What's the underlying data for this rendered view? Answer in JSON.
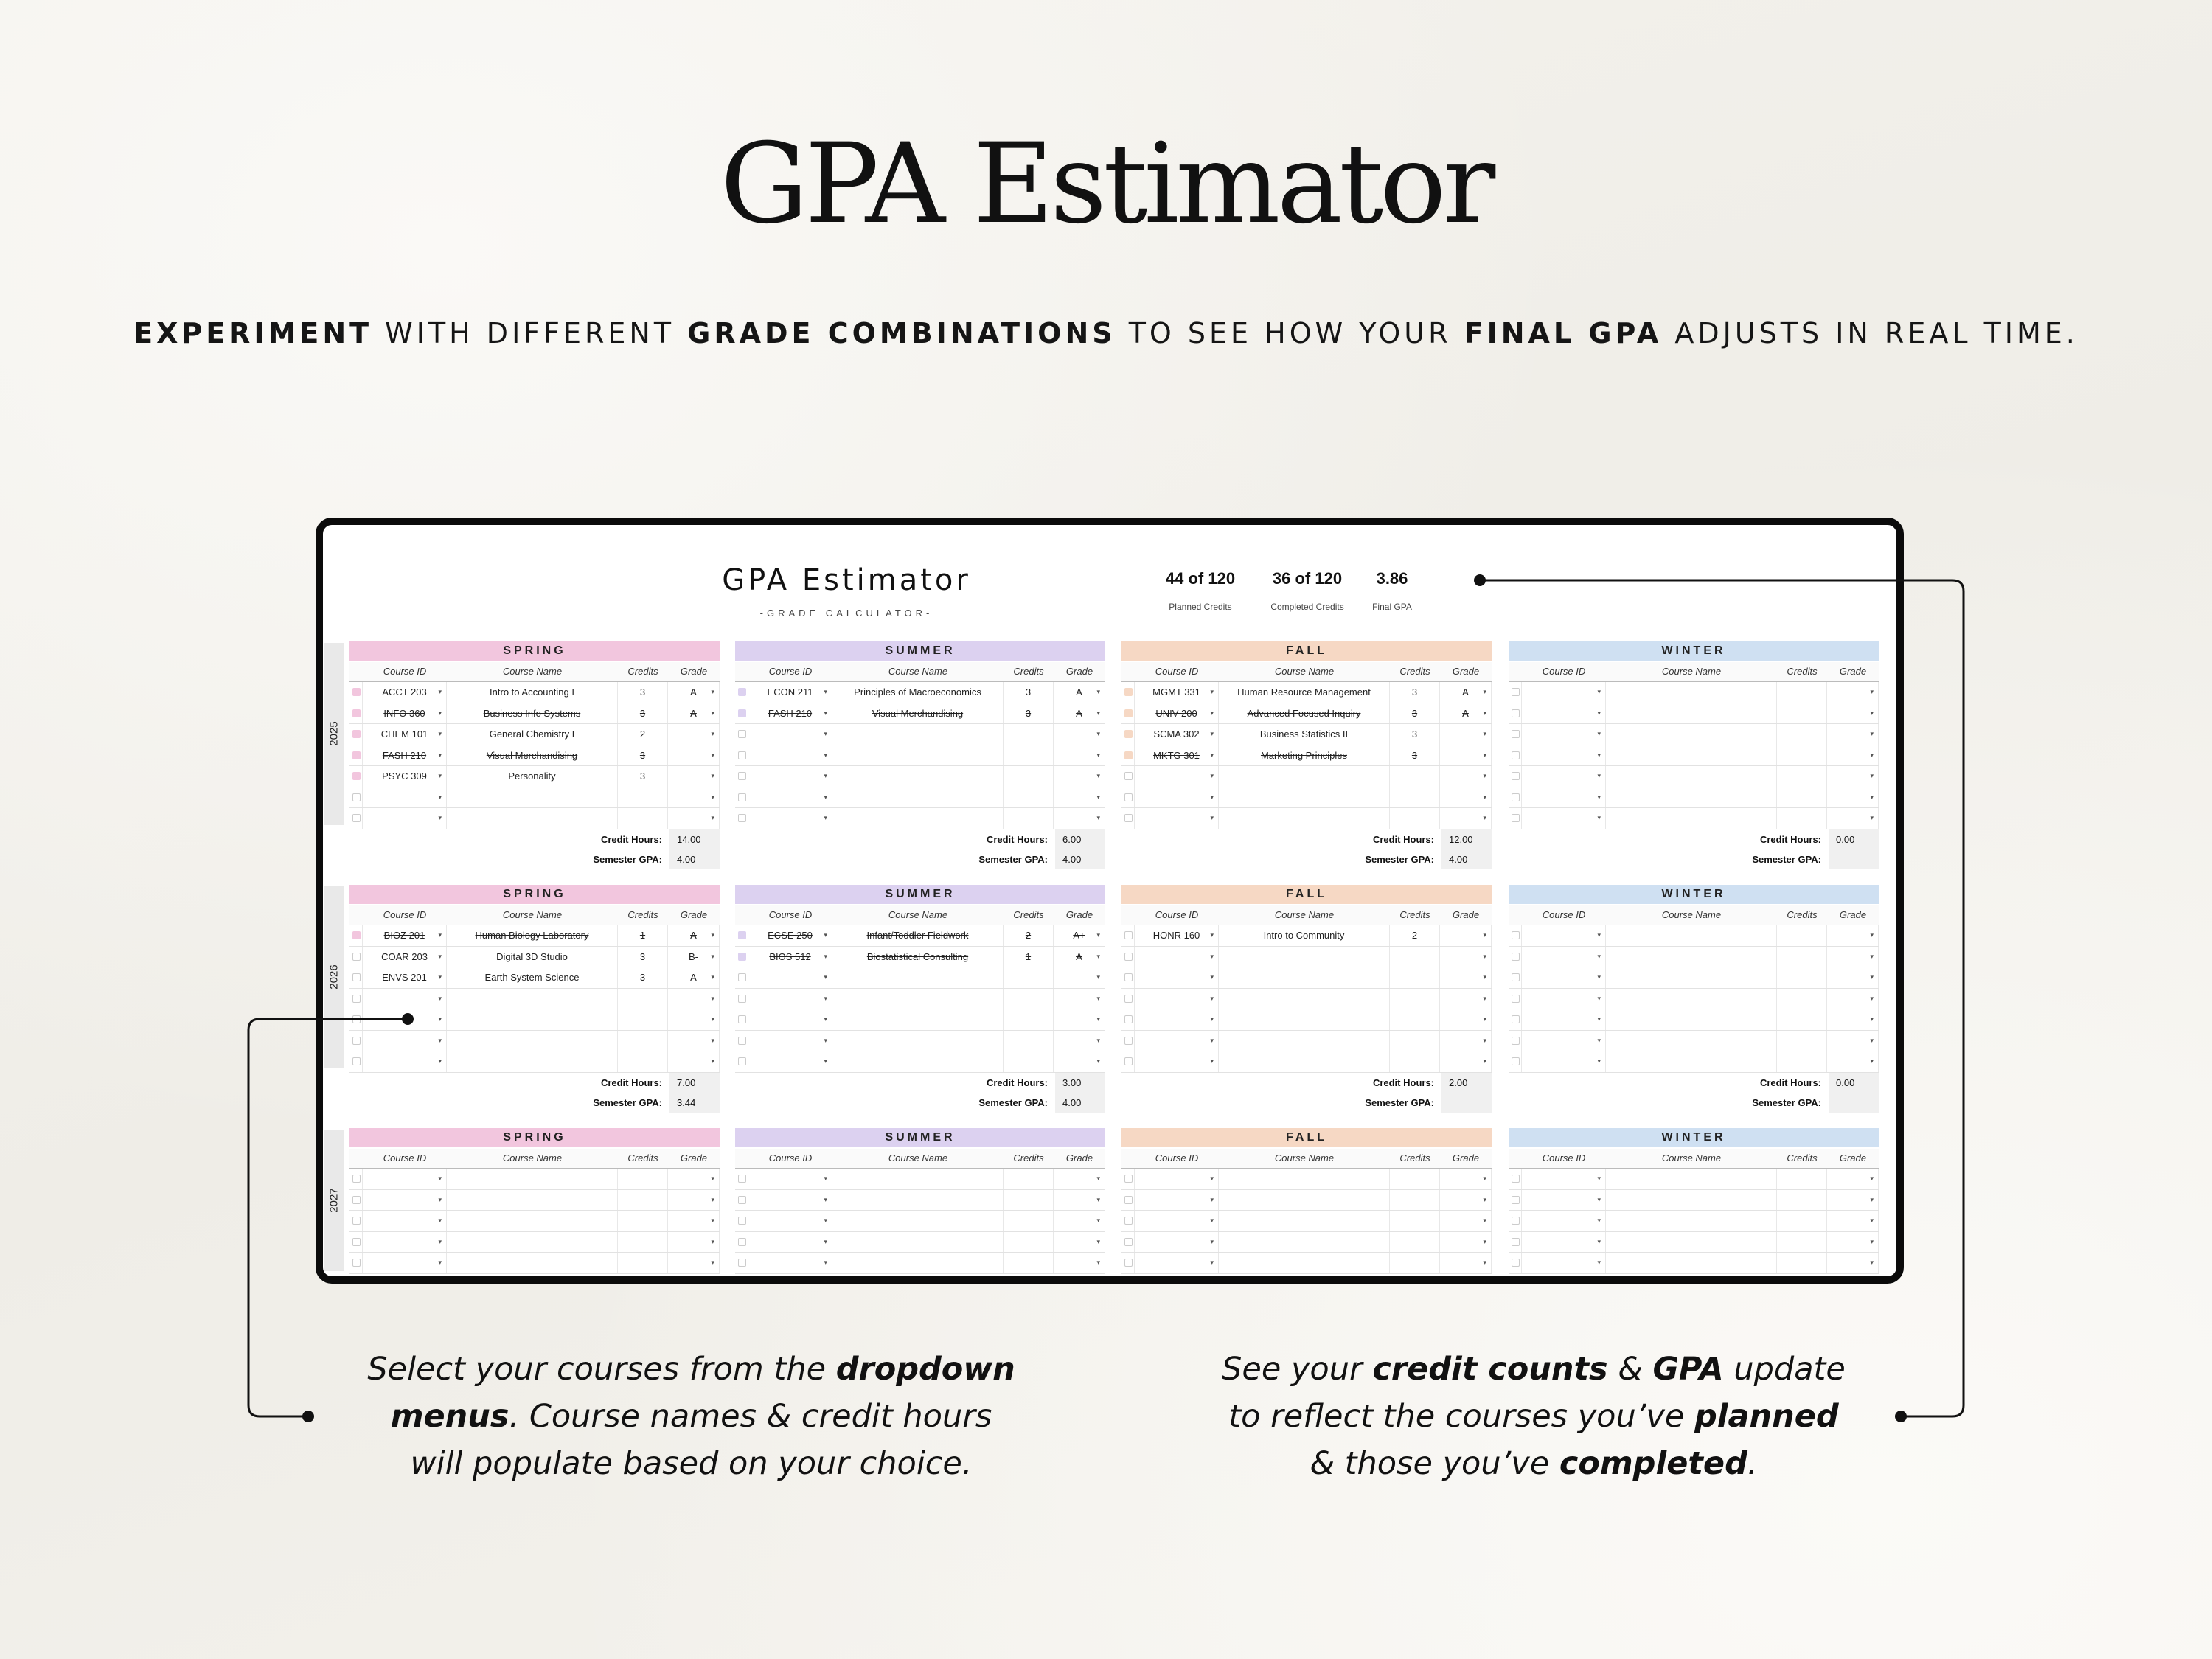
{
  "hero": {
    "title": "GPA Estimator",
    "subtitle": [
      {
        "text": "EXPERIMENT",
        "bold": true
      },
      {
        "text": " WITH DIFFERENT ",
        "bold": false
      },
      {
        "text": "GRADE COMBINATIONS",
        "bold": true
      },
      {
        "text": " TO SEE HOW YOUR ",
        "bold": false
      },
      {
        "text": "FINAL GPA",
        "bold": true
      },
      {
        "text": " ADJUSTS IN REAL TIME.",
        "bold": false
      }
    ]
  },
  "sheet": {
    "title": "GPA Estimator",
    "subtitle": "-GRADE CALCULATOR-",
    "stats": [
      {
        "value": "44 of 120",
        "label": "Planned Credits"
      },
      {
        "value": "36 of 120",
        "label": "Completed Credits"
      },
      {
        "value": "3.86",
        "label": "Final GPA"
      }
    ],
    "columns": [
      "Course ID",
      "Course Name",
      "Credits",
      "Grade"
    ],
    "summary_labels": {
      "credit_hours": "Credit Hours:",
      "semester_gpa": "Semester GPA:"
    },
    "colors": {
      "SPRING": "#f2c6de",
      "SUMMER": "#dcd1f0",
      "FALL": "#f6d8c4",
      "WINTER": "#cfe0f2"
    },
    "years": [
      {
        "year": "2025",
        "semesters": [
          {
            "name": "SPRING",
            "credit_hours": "14.00",
            "semester_gpa": "4.00",
            "rows": [
              {
                "done": true,
                "id": "ACCT 203",
                "name": "Intro to Accounting I",
                "credits": "3",
                "grade": "A"
              },
              {
                "done": true,
                "id": "INFO 360",
                "name": "Business Info Systems",
                "credits": "3",
                "grade": "A"
              },
              {
                "done": true,
                "id": "CHEM 101",
                "name": "General Chemistry I",
                "credits": "2",
                "grade": ""
              },
              {
                "done": true,
                "id": "FASH 210",
                "name": "Visual Merchandising",
                "credits": "3",
                "grade": ""
              },
              {
                "done": true,
                "id": "PSYC 309",
                "name": "Personality",
                "credits": "3",
                "grade": ""
              },
              {
                "done": false,
                "id": "",
                "name": "",
                "credits": "",
                "grade": ""
              },
              {
                "done": false,
                "id": "",
                "name": "",
                "credits": "",
                "grade": ""
              }
            ]
          },
          {
            "name": "SUMMER",
            "credit_hours": "6.00",
            "semester_gpa": "4.00",
            "rows": [
              {
                "done": true,
                "id": "ECON 211",
                "name": "Principles of Macroeconomics",
                "credits": "3",
                "grade": "A"
              },
              {
                "done": true,
                "id": "FASH 210",
                "name": "Visual Merchandising",
                "credits": "3",
                "grade": "A"
              },
              {
                "done": false,
                "id": "",
                "name": "",
                "credits": "",
                "grade": ""
              },
              {
                "done": false,
                "id": "",
                "name": "",
                "credits": "",
                "grade": ""
              },
              {
                "done": false,
                "id": "",
                "name": "",
                "credits": "",
                "grade": ""
              },
              {
                "done": false,
                "id": "",
                "name": "",
                "credits": "",
                "grade": ""
              },
              {
                "done": false,
                "id": "",
                "name": "",
                "credits": "",
                "grade": ""
              }
            ]
          },
          {
            "name": "FALL",
            "credit_hours": "12.00",
            "semester_gpa": "4.00",
            "rows": [
              {
                "done": true,
                "id": "MGMT 331",
                "name": "Human Resource Management",
                "credits": "3",
                "grade": "A"
              },
              {
                "done": true,
                "id": "UNIV 200",
                "name": "Advanced Focused Inquiry",
                "credits": "3",
                "grade": "A"
              },
              {
                "done": true,
                "id": "SCMA 302",
                "name": "Business Statistics II",
                "credits": "3",
                "grade": ""
              },
              {
                "done": true,
                "id": "MKTG 301",
                "name": "Marketing Principles",
                "credits": "3",
                "grade": ""
              },
              {
                "done": false,
                "id": "",
                "name": "",
                "credits": "",
                "grade": ""
              },
              {
                "done": false,
                "id": "",
                "name": "",
                "credits": "",
                "grade": ""
              },
              {
                "done": false,
                "id": "",
                "name": "",
                "credits": "",
                "grade": ""
              }
            ]
          },
          {
            "name": "WINTER",
            "credit_hours": "0.00",
            "semester_gpa": "",
            "rows": [
              {
                "done": false,
                "id": "",
                "name": "",
                "credits": "",
                "grade": ""
              },
              {
                "done": false,
                "id": "",
                "name": "",
                "credits": "",
                "grade": ""
              },
              {
                "done": false,
                "id": "",
                "name": "",
                "credits": "",
                "grade": ""
              },
              {
                "done": false,
                "id": "",
                "name": "",
                "credits": "",
                "grade": ""
              },
              {
                "done": false,
                "id": "",
                "name": "",
                "credits": "",
                "grade": ""
              },
              {
                "done": false,
                "id": "",
                "name": "",
                "credits": "",
                "grade": ""
              },
              {
                "done": false,
                "id": "",
                "name": "",
                "credits": "",
                "grade": ""
              }
            ]
          }
        ]
      },
      {
        "year": "2026",
        "semesters": [
          {
            "name": "SPRING",
            "credit_hours": "7.00",
            "semester_gpa": "3.44",
            "rows": [
              {
                "done": true,
                "id": "BIOZ 201",
                "name": "Human Biology Laboratory",
                "credits": "1",
                "grade": "A"
              },
              {
                "done": false,
                "id": "COAR 203",
                "name": "Digital 3D Studio",
                "credits": "3",
                "grade": "B-"
              },
              {
                "done": false,
                "id": "ENVS 201",
                "name": "Earth System Science",
                "credits": "3",
                "grade": "A"
              },
              {
                "done": false,
                "id": "",
                "name": "",
                "credits": "",
                "grade": ""
              },
              {
                "done": false,
                "id": "",
                "name": "",
                "credits": "",
                "grade": ""
              },
              {
                "done": false,
                "id": "",
                "name": "",
                "credits": "",
                "grade": ""
              },
              {
                "done": false,
                "id": "",
                "name": "",
                "credits": "",
                "grade": ""
              }
            ]
          },
          {
            "name": "SUMMER",
            "credit_hours": "3.00",
            "semester_gpa": "4.00",
            "rows": [
              {
                "done": true,
                "id": "ECSE 250",
                "name": "Infant/Toddler Fieldwork",
                "credits": "2",
                "grade": "A+"
              },
              {
                "done": true,
                "id": "BIOS 512",
                "name": "Biostatistical Consulting",
                "credits": "1",
                "grade": "A"
              },
              {
                "done": false,
                "id": "",
                "name": "",
                "credits": "",
                "grade": ""
              },
              {
                "done": false,
                "id": "",
                "name": "",
                "credits": "",
                "grade": ""
              },
              {
                "done": false,
                "id": "",
                "name": "",
                "credits": "",
                "grade": ""
              },
              {
                "done": false,
                "id": "",
                "name": "",
                "credits": "",
                "grade": ""
              },
              {
                "done": false,
                "id": "",
                "name": "",
                "credits": "",
                "grade": ""
              }
            ]
          },
          {
            "name": "FALL",
            "credit_hours": "2.00",
            "semester_gpa": "",
            "rows": [
              {
                "done": false,
                "id": "HONR 160",
                "name": "Intro to Community",
                "credits": "2",
                "grade": ""
              },
              {
                "done": false,
                "id": "",
                "name": "",
                "credits": "",
                "grade": ""
              },
              {
                "done": false,
                "id": "",
                "name": "",
                "credits": "",
                "grade": ""
              },
              {
                "done": false,
                "id": "",
                "name": "",
                "credits": "",
                "grade": ""
              },
              {
                "done": false,
                "id": "",
                "name": "",
                "credits": "",
                "grade": ""
              },
              {
                "done": false,
                "id": "",
                "name": "",
                "credits": "",
                "grade": ""
              },
              {
                "done": false,
                "id": "",
                "name": "",
                "credits": "",
                "grade": ""
              }
            ]
          },
          {
            "name": "WINTER",
            "credit_hours": "0.00",
            "semester_gpa": "",
            "rows": [
              {
                "done": false,
                "id": "",
                "name": "",
                "credits": "",
                "grade": ""
              },
              {
                "done": false,
                "id": "",
                "name": "",
                "credits": "",
                "grade": ""
              },
              {
                "done": false,
                "id": "",
                "name": "",
                "credits": "",
                "grade": ""
              },
              {
                "done": false,
                "id": "",
                "name": "",
                "credits": "",
                "grade": ""
              },
              {
                "done": false,
                "id": "",
                "name": "",
                "credits": "",
                "grade": ""
              },
              {
                "done": false,
                "id": "",
                "name": "",
                "credits": "",
                "grade": ""
              },
              {
                "done": false,
                "id": "",
                "name": "",
                "credits": "",
                "grade": ""
              }
            ]
          }
        ]
      },
      {
        "year": "2027",
        "semesters": [
          {
            "name": "SPRING",
            "rows": [
              {
                "done": false,
                "id": "",
                "name": "",
                "credits": "",
                "grade": ""
              },
              {
                "done": false,
                "id": "",
                "name": "",
                "credits": "",
                "grade": ""
              },
              {
                "done": false,
                "id": "",
                "name": "",
                "credits": "",
                "grade": ""
              },
              {
                "done": false,
                "id": "",
                "name": "",
                "credits": "",
                "grade": ""
              },
              {
                "done": false,
                "id": "",
                "name": "",
                "credits": "",
                "grade": ""
              }
            ]
          },
          {
            "name": "SUMMER",
            "rows": [
              {
                "done": false,
                "id": "",
                "name": "",
                "credits": "",
                "grade": ""
              },
              {
                "done": false,
                "id": "",
                "name": "",
                "credits": "",
                "grade": ""
              },
              {
                "done": false,
                "id": "",
                "name": "",
                "credits": "",
                "grade": ""
              },
              {
                "done": false,
                "id": "",
                "name": "",
                "credits": "",
                "grade": ""
              },
              {
                "done": false,
                "id": "",
                "name": "",
                "credits": "",
                "grade": ""
              }
            ]
          },
          {
            "name": "FALL",
            "rows": [
              {
                "done": false,
                "id": "",
                "name": "",
                "credits": "",
                "grade": ""
              },
              {
                "done": false,
                "id": "",
                "name": "",
                "credits": "",
                "grade": ""
              },
              {
                "done": false,
                "id": "",
                "name": "",
                "credits": "",
                "grade": ""
              },
              {
                "done": false,
                "id": "",
                "name": "",
                "credits": "",
                "grade": ""
              },
              {
                "done": false,
                "id": "",
                "name": "",
                "credits": "",
                "grade": ""
              }
            ]
          },
          {
            "name": "WINTER",
            "rows": [
              {
                "done": false,
                "id": "",
                "name": "",
                "credits": "",
                "grade": ""
              },
              {
                "done": false,
                "id": "",
                "name": "",
                "credits": "",
                "grade": ""
              },
              {
                "done": false,
                "id": "",
                "name": "",
                "credits": "",
                "grade": ""
              },
              {
                "done": false,
                "id": "",
                "name": "",
                "credits": "",
                "grade": ""
              },
              {
                "done": false,
                "id": "",
                "name": "",
                "credits": "",
                "grade": ""
              }
            ]
          }
        ]
      }
    ]
  },
  "callouts": {
    "left": [
      [
        {
          "t": "Select your courses from the ",
          "b": false
        },
        {
          "t": "dropdown",
          "b": true
        }
      ],
      [
        {
          "t": "menus",
          "b": true
        },
        {
          "t": ". Course names & credit hours",
          "b": false
        }
      ],
      [
        {
          "t": "will populate based on your choice.",
          "b": false
        }
      ]
    ],
    "right": [
      [
        {
          "t": "See your ",
          "b": false
        },
        {
          "t": "credit counts",
          "b": true
        },
        {
          "t": " & ",
          "b": false
        },
        {
          "t": "GPA",
          "b": true
        },
        {
          "t": " update",
          "b": false
        }
      ],
      [
        {
          "t": "to reflect the courses you’ve ",
          "b": false
        },
        {
          "t": "planned",
          "b": true
        }
      ],
      [
        {
          "t": "& those you’ve ",
          "b": false
        },
        {
          "t": "completed",
          "b": true
        },
        {
          "t": ".",
          "b": false
        }
      ]
    ]
  }
}
